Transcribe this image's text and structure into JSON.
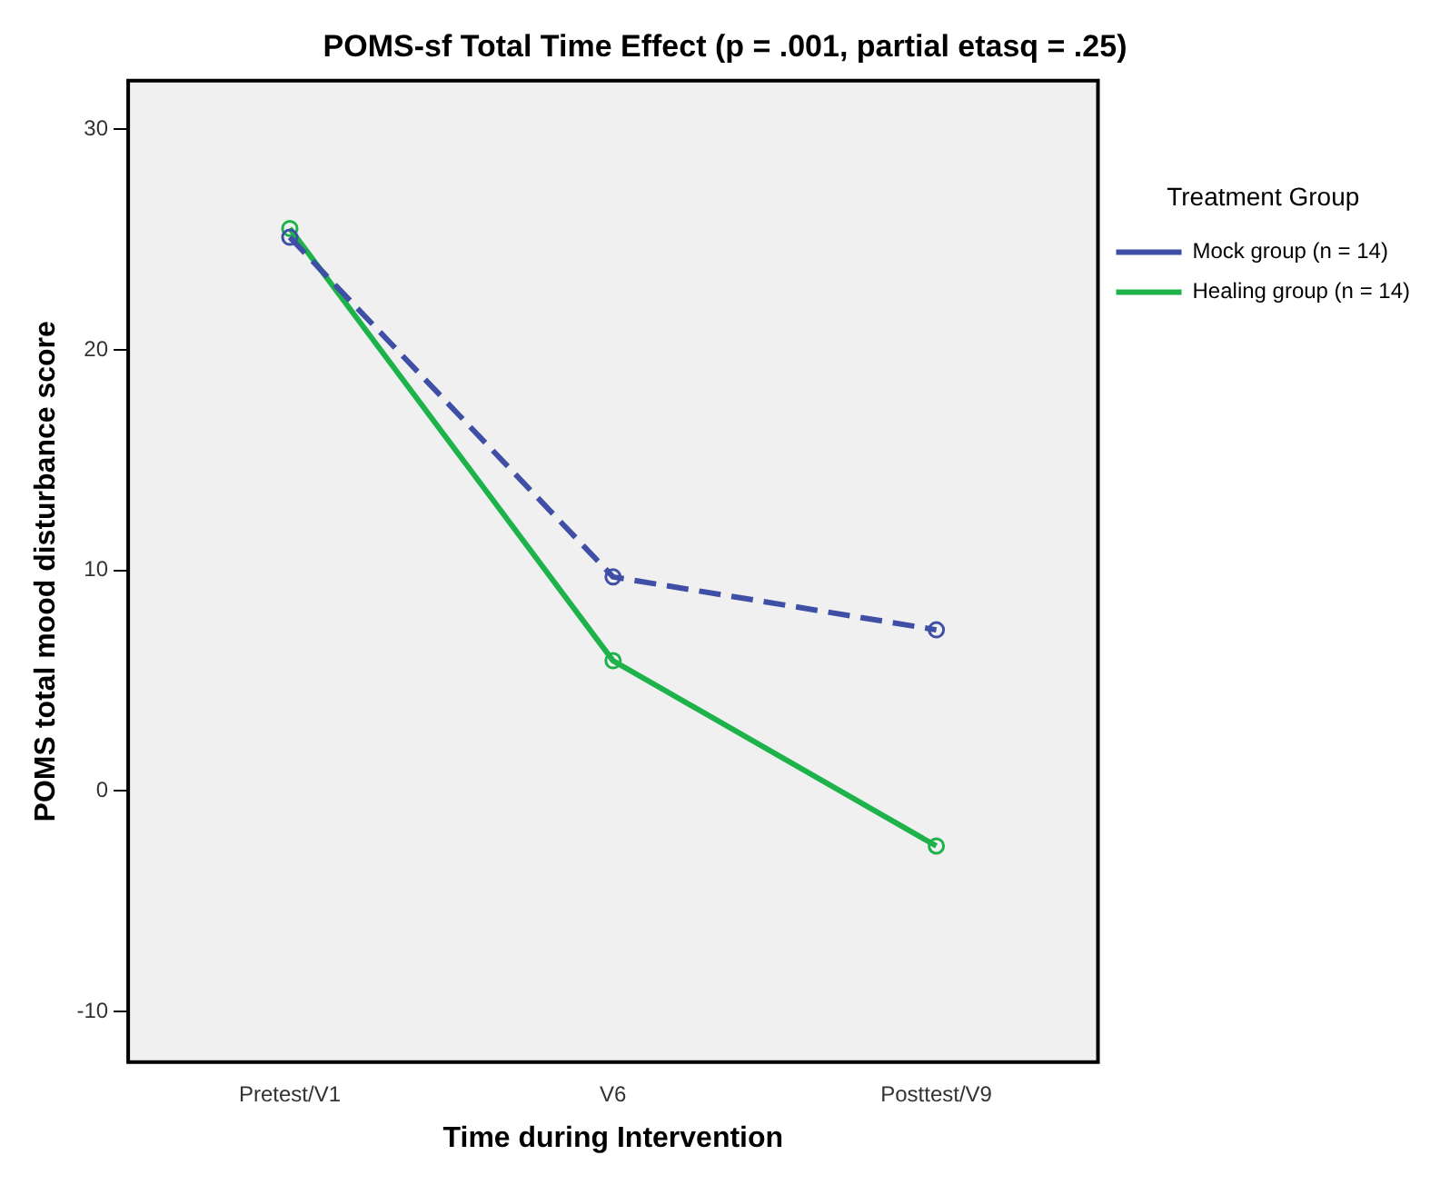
{
  "chart_data": {
    "type": "line",
    "title": "POMS-sf Total Time Effect (p = .001, partial etasq = .25)",
    "xlabel": "Time during Intervention",
    "ylabel": "POMS total mood disturbance score",
    "legend_title": "Treatment Group",
    "categories": [
      "Pretest/V1",
      "V6",
      "Posttest/V9"
    ],
    "series": [
      {
        "name": "Mock group (n = 14)",
        "color": "#3f4fa6",
        "values": [
          25.1,
          9.7,
          7.3
        ],
        "line_style": "dashed"
      },
      {
        "name": "Healing group (n = 14)",
        "color": "#1db34a",
        "values": [
          25.5,
          5.9,
          -2.5
        ],
        "line_style": "solid"
      }
    ],
    "ylim": [
      -12.3,
      32.2
    ],
    "yticks": [
      -10,
      0,
      10,
      20,
      30
    ],
    "grid": false,
    "legend": "right",
    "marker": "circle"
  }
}
